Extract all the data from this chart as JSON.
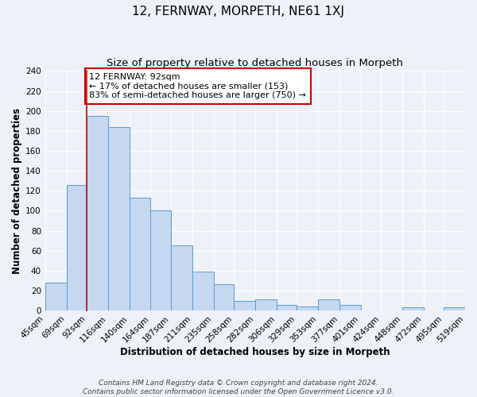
{
  "title": "12, FERNWAY, MORPETH, NE61 1XJ",
  "subtitle": "Size of property relative to detached houses in Morpeth",
  "xlabel": "Distribution of detached houses by size in Morpeth",
  "ylabel": "Number of detached properties",
  "bar_left_edges": [
    45,
    69,
    92,
    116,
    140,
    164,
    187,
    211,
    235,
    258,
    282,
    306,
    329,
    353,
    377,
    401,
    424,
    448,
    472,
    495
  ],
  "bar_widths": [
    24,
    23,
    24,
    24,
    24,
    23,
    24,
    24,
    23,
    24,
    24,
    23,
    24,
    24,
    24,
    23,
    24,
    24,
    23,
    24
  ],
  "bar_heights": [
    28,
    126,
    195,
    184,
    113,
    100,
    65,
    39,
    26,
    10,
    11,
    6,
    4,
    11,
    6,
    0,
    0,
    3,
    0,
    3
  ],
  "tick_labels": [
    "45sqm",
    "69sqm",
    "92sqm",
    "116sqm",
    "140sqm",
    "164sqm",
    "187sqm",
    "211sqm",
    "235sqm",
    "258sqm",
    "282sqm",
    "306sqm",
    "329sqm",
    "353sqm",
    "377sqm",
    "401sqm",
    "424sqm",
    "448sqm",
    "472sqm",
    "495sqm",
    "519sqm"
  ],
  "bar_color": "#c5d8f0",
  "bar_edge_color": "#5b9bd5",
  "vline_x": 92,
  "vline_color": "#cc0000",
  "annotation_text": "12 FERNWAY: 92sqm\n← 17% of detached houses are smaller (153)\n83% of semi-detached houses are larger (750) →",
  "annotation_box_edge": "#cc0000",
  "annotation_box_face": "#ffffff",
  "ylim": [
    0,
    240
  ],
  "yticks": [
    0,
    20,
    40,
    60,
    80,
    100,
    120,
    140,
    160,
    180,
    200,
    220,
    240
  ],
  "footer_line1": "Contains HM Land Registry data © Crown copyright and database right 2024.",
  "footer_line2": "Contains public sector information licensed under the Open Government Licence v3.0.",
  "background_color": "#eef2f8",
  "plot_bg_color": "#eef2f8",
  "grid_color": "#ffffff",
  "title_fontsize": 11,
  "subtitle_fontsize": 9.5,
  "axis_label_fontsize": 8.5,
  "tick_fontsize": 7.5,
  "annotation_fontsize": 8,
  "footer_fontsize": 6.5
}
